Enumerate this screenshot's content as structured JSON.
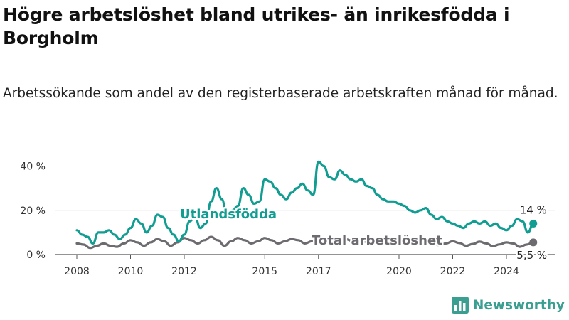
{
  "title": "Högre arbetslöshet bland utrikes- än inrikesfödda i Borgholm",
  "subtitle": "Arbetssökande som andel av den registerbaserade arbetskraften månad för månad.",
  "brand": {
    "name": "Newsworthy",
    "color": "#3a9e91",
    "icon": "bar-chart-logo-icon"
  },
  "chart_data": {
    "type": "line",
    "xlabel": "",
    "ylabel": "",
    "ylim": [
      0,
      45
    ],
    "xlim": [
      2007.8,
      2025.4
    ],
    "yticks": [
      0,
      20,
      40
    ],
    "ytick_labels": [
      "0 %",
      "20 %",
      "40 %"
    ],
    "xticks": [
      2008,
      2010,
      2012,
      2015,
      2017,
      2020,
      2022,
      2024
    ],
    "xtick_labels": [
      "2008",
      "2010",
      "2012",
      "2015",
      "2017",
      "2020",
      "2022",
      "2024"
    ],
    "grid": true,
    "legend": "inline labels",
    "series": [
      {
        "name": "Utlandsfödda",
        "color": "#119d91",
        "end_label": "14 %",
        "x": [
          2008.0,
          2008.2,
          2008.4,
          2008.6,
          2008.8,
          2009.0,
          2009.2,
          2009.4,
          2009.6,
          2009.8,
          2010.0,
          2010.2,
          2010.4,
          2010.6,
          2010.8,
          2011.0,
          2011.2,
          2011.4,
          2011.6,
          2011.8,
          2012.0,
          2012.2,
          2012.4,
          2012.6,
          2012.8,
          2013.0,
          2013.2,
          2013.4,
          2013.6,
          2013.8,
          2014.0,
          2014.2,
          2014.4,
          2014.6,
          2014.8,
          2015.0,
          2015.2,
          2015.4,
          2015.6,
          2015.8,
          2016.0,
          2016.2,
          2016.4,
          2016.6,
          2016.8,
          2017.0,
          2017.2,
          2017.4,
          2017.6,
          2017.8,
          2018.0,
          2018.2,
          2018.4,
          2018.6,
          2018.8,
          2019.0,
          2019.2,
          2019.4,
          2019.6,
          2019.8,
          2020.0,
          2020.2,
          2020.4,
          2020.6,
          2020.8,
          2021.0,
          2021.2,
          2021.4,
          2021.6,
          2021.8,
          2022.0,
          2022.2,
          2022.4,
          2022.6,
          2022.8,
          2023.0,
          2023.2,
          2023.4,
          2023.6,
          2023.8,
          2024.0,
          2024.2,
          2024.4,
          2024.6,
          2024.8,
          2025.0
        ],
        "values": [
          11,
          9,
          8,
          5,
          10,
          10,
          11,
          9,
          7,
          9,
          12,
          16,
          14,
          10,
          13,
          18,
          17,
          12,
          9,
          6,
          9,
          15,
          17,
          12,
          14,
          24,
          30,
          25,
          16,
          20,
          22,
          30,
          27,
          23,
          24,
          34,
          33,
          30,
          27,
          25,
          28,
          30,
          32,
          29,
          27,
          42,
          40,
          35,
          34,
          38,
          36,
          34,
          33,
          34,
          31,
          30,
          27,
          25,
          24,
          24,
          23,
          22,
          20,
          19,
          20,
          21,
          18,
          16,
          17,
          15,
          14,
          13,
          12,
          14,
          15,
          14,
          15,
          13,
          14,
          12,
          11,
          13,
          16,
          15,
          10,
          14
        ]
      },
      {
        "name": "Total arbetslöshet",
        "color": "#6d6a70",
        "end_label": "5,5 %",
        "x": [
          2008.0,
          2008.25,
          2008.5,
          2008.75,
          2009.0,
          2009.25,
          2009.5,
          2009.75,
          2010.0,
          2010.25,
          2010.5,
          2010.75,
          2011.0,
          2011.25,
          2011.5,
          2011.75,
          2012.0,
          2012.25,
          2012.5,
          2012.75,
          2013.0,
          2013.25,
          2013.5,
          2013.75,
          2014.0,
          2014.25,
          2014.5,
          2014.75,
          2015.0,
          2015.25,
          2015.5,
          2015.75,
          2016.0,
          2016.25,
          2016.5,
          2016.75,
          2017.0,
          2017.25,
          2017.5,
          2017.75,
          2018.0,
          2018.25,
          2018.5,
          2018.75,
          2019.0,
          2019.25,
          2019.5,
          2019.75,
          2020.0,
          2020.25,
          2020.5,
          2020.75,
          2021.0,
          2021.25,
          2021.5,
          2021.75,
          2022.0,
          2022.25,
          2022.5,
          2022.75,
          2023.0,
          2023.25,
          2023.5,
          2023.75,
          2024.0,
          2024.25,
          2024.5,
          2024.75,
          2025.0
        ],
        "values": [
          5,
          4.5,
          3,
          4,
          5,
          4,
          3.5,
          5,
          6.5,
          5.5,
          4,
          5.5,
          7,
          6,
          4,
          5.5,
          7.5,
          6.5,
          5,
          6.5,
          8,
          6.5,
          4,
          6,
          7.5,
          6.5,
          5,
          6,
          7.5,
          6.5,
          5,
          6,
          7,
          6.5,
          5,
          6,
          7.2,
          6.5,
          5,
          6,
          7,
          6.2,
          5,
          5.8,
          6.8,
          6,
          4.8,
          5.5,
          6.5,
          5.8,
          4.5,
          5.2,
          6.2,
          5.5,
          4.2,
          5,
          6,
          5.2,
          4,
          4.8,
          5.8,
          5,
          3.8,
          4.6,
          5.5,
          5,
          3.5,
          4.5,
          5.5
        ]
      }
    ]
  }
}
